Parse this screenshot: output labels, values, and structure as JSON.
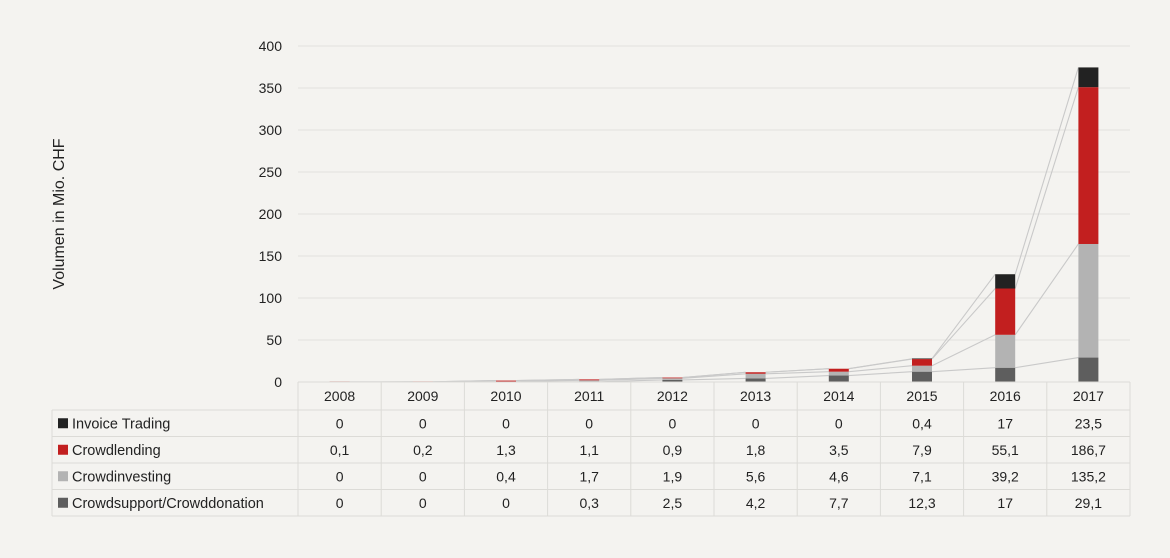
{
  "chart_data": {
    "type": "bar",
    "stacked": true,
    "ylabel": "Volumen in Mio. CHF",
    "ylim": [
      0,
      400
    ],
    "yticks": [
      0,
      50,
      100,
      150,
      200,
      250,
      300,
      350,
      400
    ],
    "grid": true,
    "data_table": true,
    "categories": [
      "2008",
      "2009",
      "2010",
      "2011",
      "2012",
      "2013",
      "2014",
      "2015",
      "2016",
      "2017"
    ],
    "series": [
      {
        "name": "Crowdsupport/Crowddonation",
        "color": "#5e5e5e",
        "values": [
          0,
          0,
          0,
          0.3,
          2.5,
          4.2,
          7.7,
          12.3,
          17,
          29.1
        ],
        "labels": [
          "0",
          "0",
          "0",
          "0,3",
          "2,5",
          "4,2",
          "7,7",
          "12,3",
          "17",
          "29,1"
        ]
      },
      {
        "name": "Crowdinvesting",
        "color": "#b3b3b3",
        "values": [
          0,
          0,
          0.4,
          1.7,
          1.9,
          5.6,
          4.6,
          7.1,
          39.2,
          135.2
        ],
        "labels": [
          "0",
          "0",
          "0,4",
          "1,7",
          "1,9",
          "5,6",
          "4,6",
          "7,1",
          "39,2",
          "135,2"
        ]
      },
      {
        "name": "Crowdlending",
        "color": "#c21f1f",
        "values": [
          0.1,
          0.2,
          1.3,
          1.1,
          0.9,
          1.8,
          3.5,
          7.9,
          55.1,
          186.7
        ],
        "labels": [
          "0,1",
          "0,2",
          "1,3",
          "1,1",
          "0,9",
          "1,8",
          "3,5",
          "7,9",
          "55,1",
          "186,7"
        ]
      },
      {
        "name": "Invoice Trading",
        "color": "#222222",
        "values": [
          0,
          0,
          0,
          0,
          0,
          0,
          0,
          0.4,
          17,
          23.5
        ],
        "labels": [
          "0",
          "0",
          "0",
          "0",
          "0",
          "0",
          "0",
          "0,4",
          "17",
          "23,5"
        ]
      }
    ]
  }
}
